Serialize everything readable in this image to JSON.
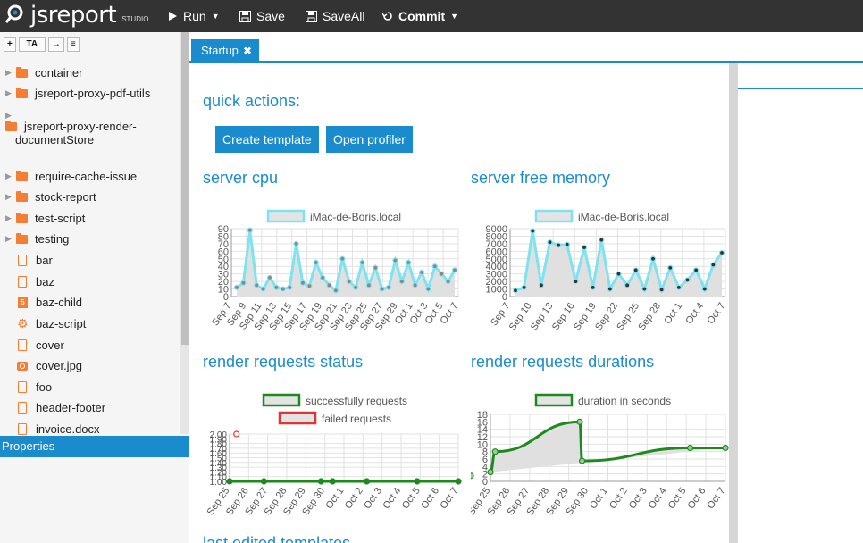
{
  "app": {
    "logo": "jsreport",
    "logo_sub": "STUDIO"
  },
  "toolbar": {
    "run": "Run",
    "save": "Save",
    "saveall": "SaveAll",
    "commit": "Commit"
  },
  "tree_tools": [
    "+",
    "TA",
    "→",
    "≡"
  ],
  "tree": [
    {
      "label": "container",
      "type": "folder"
    },
    {
      "label": "jsreport-proxy-pdf-utils",
      "type": "folder"
    },
    {
      "label": "jsreport-proxy-render-documentStore",
      "type": "folder"
    },
    {
      "label": "require-cache-issue",
      "type": "folder"
    },
    {
      "label": "stock-report",
      "type": "folder"
    },
    {
      "label": "test-script",
      "type": "folder"
    },
    {
      "label": "testing",
      "type": "folder"
    },
    {
      "label": "bar",
      "type": "pdf"
    },
    {
      "label": "baz",
      "type": "pdf"
    },
    {
      "label": "baz-child",
      "type": "html"
    },
    {
      "label": "baz-script",
      "type": "script"
    },
    {
      "label": "cover",
      "type": "pdf"
    },
    {
      "label": "cover.jpg",
      "type": "image"
    },
    {
      "label": "foo",
      "type": "pdf"
    },
    {
      "label": "header-footer",
      "type": "pdf"
    },
    {
      "label": "invoice.docx",
      "type": "pdf"
    }
  ],
  "properties_label": "Properties",
  "tab": {
    "label": "Startup"
  },
  "startup": {
    "quick_actions": "quick actions:",
    "create_template": "Create template",
    "open_profiler": "Open profiler",
    "server_cpu": "server cpu",
    "server_free_memory": "server free memory",
    "render_requests_status": "render requests status",
    "render_requests_durations": "render requests durations",
    "next_heading": "last edited templates"
  },
  "colors": {
    "accent": "#1a8bcc",
    "cyan": "#7ee3f0",
    "green": "#1e8a1e",
    "red": "#e53333",
    "folder": "#f47e33"
  },
  "chart_data": [
    {
      "type": "line",
      "title": "server cpu",
      "legend": [
        "iMac-de-Boris.local"
      ],
      "x_ticks": [
        "Sep 7",
        "Sep 9",
        "Sep 11",
        "Sep 13",
        "Sep 15",
        "Sep 17",
        "Sep 19",
        "Sep 21",
        "Sep 23",
        "Sep 25",
        "Sep 27",
        "Sep 29",
        "Oct 1",
        "Oct 3",
        "Oct 5",
        "Oct 7"
      ],
      "y_ticks": [
        "0",
        "10",
        "20",
        "30",
        "40",
        "50",
        "60",
        "70",
        "80",
        "90"
      ],
      "ylim": [
        0,
        90
      ],
      "series": [
        {
          "name": "iMac-de-Boris.local",
          "values": [
            12,
            18,
            88,
            15,
            10,
            25,
            12,
            10,
            12,
            70,
            18,
            14,
            45,
            25,
            15,
            8,
            50,
            20,
            12,
            45,
            15,
            38,
            10,
            12,
            48,
            20,
            45,
            15,
            32,
            10,
            40,
            30,
            20,
            35
          ]
        }
      ]
    },
    {
      "type": "line",
      "title": "server free memory",
      "legend": [
        "iMac-de-Boris.local"
      ],
      "x_ticks": [
        "Sep 7",
        "Sep 10",
        "Sep 13",
        "Sep 16",
        "Sep 19",
        "Sep 22",
        "Sep 25",
        "Sep 28",
        "Oct 1",
        "Oct 4",
        "Oct 7"
      ],
      "y_ticks": [
        "0",
        "1000",
        "2000",
        "3000",
        "4000",
        "5000",
        "6000",
        "7000",
        "8000",
        "9000"
      ],
      "ylim": [
        0,
        9000
      ],
      "series": [
        {
          "name": "iMac-de-Boris.local",
          "values": [
            800,
            1200,
            8700,
            1500,
            7200,
            6800,
            6900,
            2000,
            6500,
            1200,
            7500,
            1000,
            3000,
            1500,
            3500,
            1000,
            5000,
            900,
            3800,
            1200,
            2200,
            3500,
            1000,
            4200,
            5800
          ]
        }
      ]
    },
    {
      "type": "line",
      "title": "render requests status",
      "legend": [
        "successfully requests",
        "failed requests"
      ],
      "x_ticks": [
        "Sep 25",
        "Sep 26",
        "Sep 27",
        "Sep 28",
        "Sep 29",
        "Sep 30",
        "Oct 1",
        "Oct 2",
        "Oct 3",
        "Oct 4",
        "Oct 5",
        "Oct 6",
        "Oct 7"
      ],
      "y_ticks": [
        "1.00",
        "1.10",
        "1.20",
        "1.30",
        "1.40",
        "1.50",
        "1.60",
        "1.70",
        "1.80",
        "1.90",
        "2.00"
      ],
      "ylim": [
        1.0,
        2.0
      ],
      "series": [
        {
          "name": "successfully requests",
          "values": [
            1,
            1,
            1,
            1,
            1,
            1,
            1
          ]
        },
        {
          "name": "failed requests",
          "values": [
            2.0
          ]
        }
      ]
    },
    {
      "type": "area",
      "title": "render requests durations",
      "legend": [
        "duration in seconds"
      ],
      "x_ticks": [
        "Sep 25",
        "Sep 26",
        "Sep 27",
        "Sep 28",
        "Sep 29",
        "Sep 30",
        "Oct 1",
        "Oct 2",
        "Oct 3",
        "Oct 4",
        "Oct 5",
        "Oct 6",
        "Oct 7"
      ],
      "y_ticks": [
        "0",
        "2",
        "4",
        "6",
        "8",
        "10",
        "12",
        "14",
        "16",
        "18"
      ],
      "ylim": [
        0,
        18
      ],
      "series": [
        {
          "name": "duration in seconds",
          "values": [
            2.5,
            8,
            16,
            5.5,
            9,
            9,
            1.5
          ]
        }
      ]
    }
  ]
}
